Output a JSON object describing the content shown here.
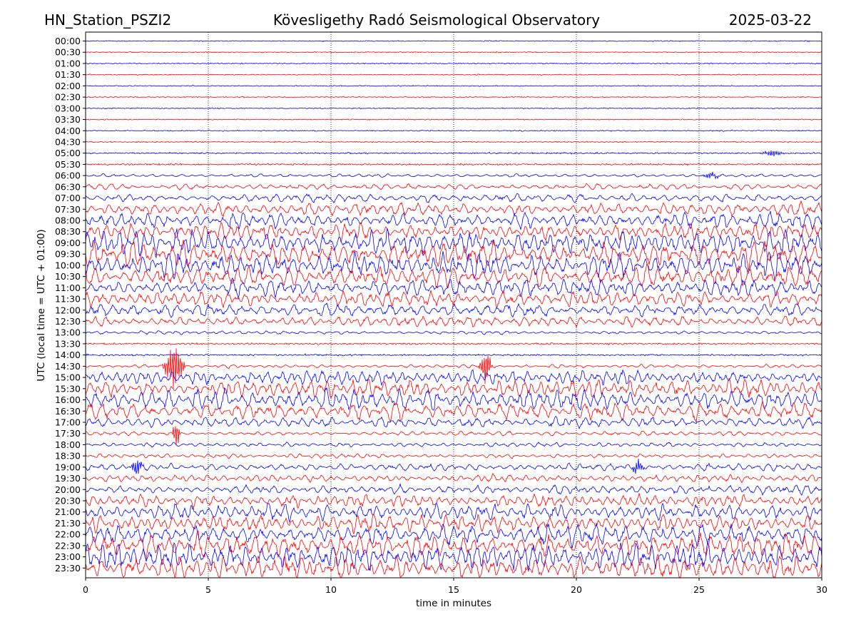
{
  "chart_data": {
    "type": "line",
    "title": {
      "station": "HN_Station_PSZI2",
      "observatory": "Kövesligethy Radó Seismological Observatory",
      "date": "2025-03-22"
    },
    "xlabel": "time in minutes",
    "ylabel": "UTC (local time = UTC + 01:00)",
    "xlim": [
      0,
      30
    ],
    "xticks": [
      0,
      5,
      10,
      15,
      20,
      25,
      30
    ],
    "grid": "vertical dotted at x ticks",
    "trace_colors": [
      "#0000ff",
      "#ff0000"
    ],
    "rows": [
      "00:00",
      "00:30",
      "01:00",
      "01:30",
      "02:00",
      "02:30",
      "03:00",
      "03:30",
      "04:00",
      "04:30",
      "05:00",
      "05:30",
      "06:00",
      "06:30",
      "07:00",
      "07:30",
      "08:00",
      "08:30",
      "09:00",
      "09:30",
      "10:00",
      "10:30",
      "11:00",
      "11:30",
      "12:00",
      "12:30",
      "13:00",
      "13:30",
      "14:00",
      "14:30",
      "15:00",
      "15:30",
      "16:00",
      "16:30",
      "17:00",
      "17:30",
      "18:00",
      "18:30",
      "19:00",
      "19:30",
      "20:00",
      "20:30",
      "21:00",
      "21:30",
      "22:00",
      "22:30",
      "23:00",
      "23:30"
    ],
    "noise_amplitude": [
      0.06,
      0.06,
      0.07,
      0.06,
      0.06,
      0.06,
      0.06,
      0.06,
      0.07,
      0.07,
      0.09,
      0.1,
      0.12,
      0.2,
      0.3,
      0.45,
      0.5,
      0.55,
      0.85,
      0.9,
      0.85,
      0.7,
      0.55,
      0.5,
      0.45,
      0.35,
      0.12,
      0.1,
      0.1,
      0.12,
      0.5,
      0.6,
      0.7,
      0.6,
      0.35,
      0.15,
      0.15,
      0.15,
      0.25,
      0.25,
      0.3,
      0.45,
      0.55,
      0.6,
      0.7,
      0.8,
      0.85,
      0.8
    ],
    "bursts": [
      {
        "row": "05:00",
        "x": 28.0,
        "width": 0.6,
        "amplitude": 0.35
      },
      {
        "row": "06:00",
        "x": 25.5,
        "width": 0.5,
        "amplitude": 0.3
      },
      {
        "row": "14:30",
        "x": 3.6,
        "width": 0.5,
        "amplitude": 2.5
      },
      {
        "row": "14:30",
        "x": 16.3,
        "width": 0.3,
        "amplitude": 1.8
      },
      {
        "row": "17:30",
        "x": 3.7,
        "width": 0.2,
        "amplitude": 1.6
      },
      {
        "row": "19:00",
        "x": 2.1,
        "width": 0.3,
        "amplitude": 0.9
      },
      {
        "row": "19:00",
        "x": 22.5,
        "width": 0.3,
        "amplitude": 0.8
      }
    ]
  }
}
